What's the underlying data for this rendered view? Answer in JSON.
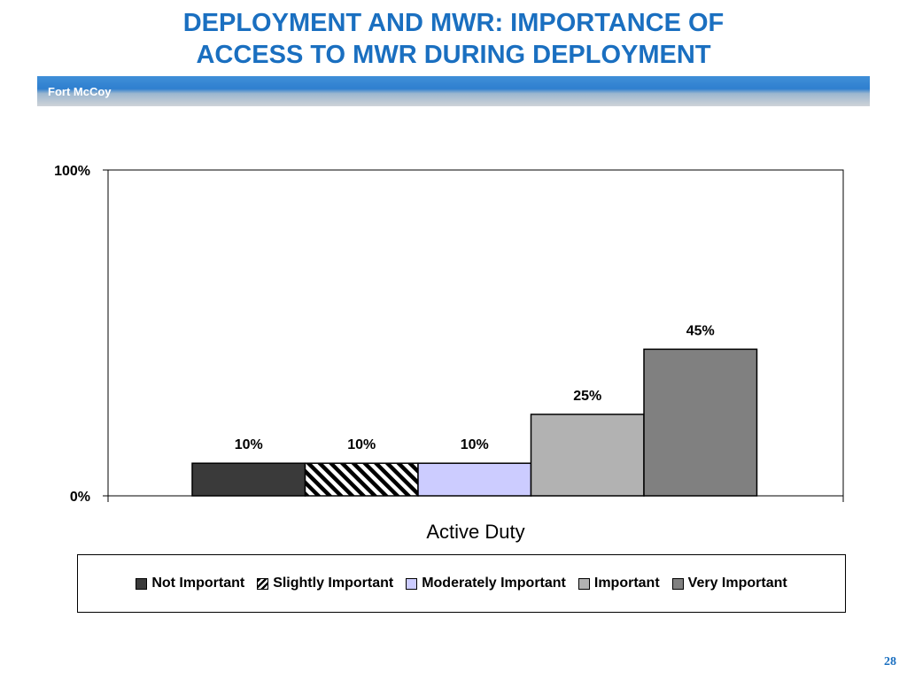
{
  "header": {
    "title_line1": "DEPLOYMENT AND MWR: IMPORTANCE OF",
    "title_line2": "ACCESS TO MWR DURING DEPLOYMENT",
    "banner_label": "Fort McCoy"
  },
  "chart_data": {
    "type": "bar",
    "title": "",
    "xlabel": "Active Duty",
    "ylabel": "",
    "ylim": [
      0,
      100
    ],
    "yticks": [
      "0%",
      "100%"
    ],
    "categories": [
      "Active Duty"
    ],
    "grid": false,
    "legend_position": "bottom",
    "series": [
      {
        "name": "Not Important",
        "values": [
          10
        ],
        "label": "10%",
        "color": "#3a3a3a",
        "pattern": "solid"
      },
      {
        "name": "Slightly Important",
        "values": [
          10
        ],
        "label": "10%",
        "color": "#000000",
        "pattern": "diagonal-hatch"
      },
      {
        "name": "Moderately Important",
        "values": [
          10
        ],
        "label": "10%",
        "color": "#ccccff",
        "pattern": "solid"
      },
      {
        "name": "Important",
        "values": [
          25
        ],
        "label": "25%",
        "color": "#b2b2b2",
        "pattern": "solid"
      },
      {
        "name": "Very Important",
        "values": [
          45
        ],
        "label": "45%",
        "color": "#808080",
        "pattern": "solid"
      }
    ]
  },
  "footer": {
    "page_number": "28"
  },
  "colors": {
    "title": "#1a6fc0",
    "banner": "#2f7fcf"
  }
}
